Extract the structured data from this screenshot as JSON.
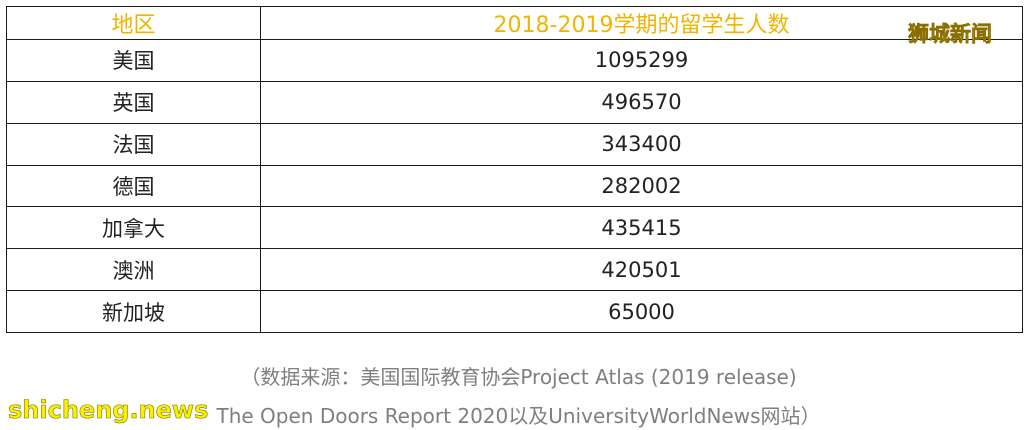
{
  "table": {
    "headers": [
      "地区",
      "2018-2019学期的留学生人数"
    ],
    "rows": [
      {
        "region": "美国",
        "count": "1095299"
      },
      {
        "region": "英国",
        "count": "496570"
      },
      {
        "region": "法国",
        "count": "343400"
      },
      {
        "region": "德国",
        "count": "282002"
      },
      {
        "region": "加拿大",
        "count": "435415"
      },
      {
        "region": "澳洲",
        "count": "420501"
      },
      {
        "region": "新加坡",
        "count": "65000"
      }
    ]
  },
  "watermark_top": "狮城新闻",
  "source_note": {
    "line1": "（数据来源：美国国际教育协会Project Atlas (2019 release)",
    "line2": "The Open Doors Report 2020以及UniversityWorldNews网站）"
  },
  "watermark_bottom": "shicheng.news",
  "colors": {
    "header_text": "#f2b400",
    "watermark": "#ffee00",
    "note_text": "#7f7f7f"
  }
}
